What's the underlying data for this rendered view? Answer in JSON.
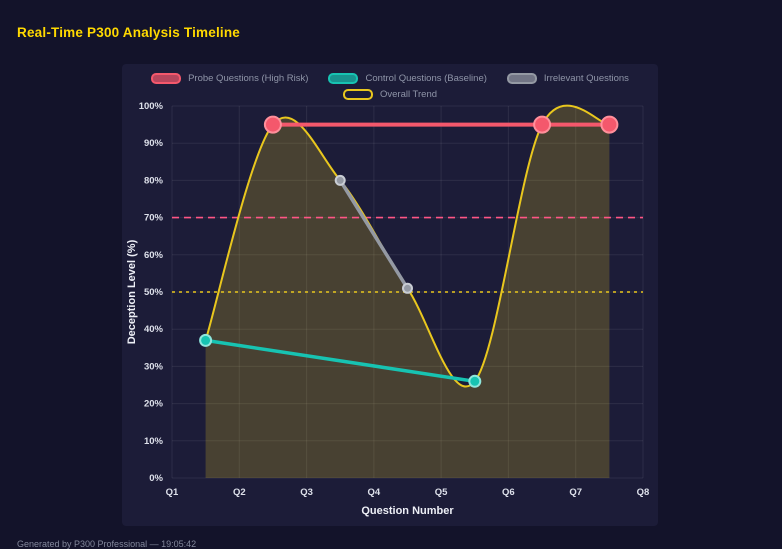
{
  "page": {
    "title": "Real-Time P300 Analysis Timeline",
    "footer": "Generated by P300 Professional — 19:05:42"
  },
  "colors": {
    "background": "#13132a",
    "panel": "#1c1c38",
    "title": "#ffd900",
    "grid": "rgba(255,255,255,0.08)"
  },
  "chart_data": {
    "type": "line",
    "xlabel": "Question Number",
    "ylabel": "Deception Level (%)",
    "x_ticks": [
      "Q1",
      "Q2",
      "Q3",
      "Q4",
      "Q5",
      "Q6",
      "Q7",
      "Q8"
    ],
    "xlim": [
      1,
      8
    ],
    "ylim": [
      0,
      100
    ],
    "y_tick_step": 10,
    "y_tick_suffix": "%",
    "grid": true,
    "legend_position": "top",
    "legend": [
      {
        "label": "Probe Questions (High Risk)",
        "color": "#f4586c",
        "filled": true
      },
      {
        "label": "Control Questions (Baseline)",
        "color": "#17c3b2",
        "filled": true
      },
      {
        "label": "Irrelevant Questions",
        "color": "#9499a3",
        "filled": true
      },
      {
        "label": "Overall Trend",
        "color": "#e9c71e",
        "filled": false
      }
    ],
    "series": [
      {
        "name": "Probe Questions (High Risk)",
        "color": "#f4586c",
        "x": [
          2.5,
          6.5,
          7.5
        ],
        "values": [
          95,
          95,
          95
        ],
        "line_width": 4,
        "marker_radius": 8,
        "marker_stroke": "#ff8f9b"
      },
      {
        "name": "Control Questions (Baseline)",
        "color": "#17c3b2",
        "x": [
          1.5,
          5.5
        ],
        "values": [
          37,
          26
        ],
        "line_width": 3.5,
        "marker_radius": 5.5,
        "marker_stroke": "#8fe6dd"
      },
      {
        "name": "Irrelevant Questions",
        "color": "#9499a3",
        "x": [
          3.5,
          4.5
        ],
        "values": [
          80,
          51
        ],
        "line_width": 3.5,
        "marker_radius": 4.5,
        "marker_stroke": "#c9cdd4"
      },
      {
        "name": "Overall Trend",
        "color": "#e9c71e",
        "x": [
          1.5,
          2.5,
          3.5,
          4.5,
          5.5,
          6.5,
          7.5
        ],
        "values": [
          37,
          95,
          80,
          51,
          26,
          95,
          95
        ],
        "line_width": 2,
        "smooth": true,
        "fill": true,
        "fill_color": "rgba(233,199,30,0.22)"
      }
    ],
    "reference_lines": [
      {
        "y": 70,
        "color": "#ff5585",
        "dash": "7 5"
      },
      {
        "y": 50,
        "color": "#e9c71e",
        "dash": "3 4"
      }
    ]
  }
}
